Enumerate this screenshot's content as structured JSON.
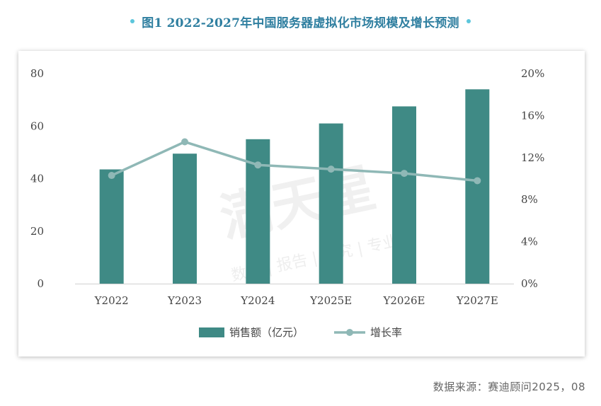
{
  "page": {
    "title": "图1 2022-2027年中国服务器虚拟化市场规模及增长预测",
    "source": "数据来源：赛迪顾问2025，08"
  },
  "watermark": {
    "main": "满天星",
    "sub": "数据 | 报告 | 研究 | 专业"
  },
  "chart_data": {
    "type": "bar",
    "title": "",
    "categories": [
      "Y2022",
      "Y2023",
      "Y2024",
      "Y2025E",
      "Y2026E",
      "Y2027E"
    ],
    "series": [
      {
        "name": "销售额（亿元）",
        "type": "bar",
        "axis": "left",
        "color": "#3f8a85",
        "values": [
          43.5,
          49.5,
          55.0,
          61.0,
          67.5,
          74.0
        ]
      },
      {
        "name": "增长率",
        "type": "line",
        "axis": "right",
        "color": "#8fb8b6",
        "values": [
          10.3,
          13.5,
          11.3,
          10.9,
          10.5,
          9.8
        ]
      }
    ],
    "y_left": {
      "min": 0,
      "max": 80,
      "ticks": [
        "0",
        "20",
        "40",
        "60",
        "80"
      ]
    },
    "y_right": {
      "min": 0,
      "max": 20,
      "ticks": [
        "0%",
        "4%",
        "8%",
        "12%",
        "16%",
        "20%"
      ]
    },
    "xlabel": "",
    "ylabel": "",
    "grid": false,
    "legend": "bottom"
  }
}
